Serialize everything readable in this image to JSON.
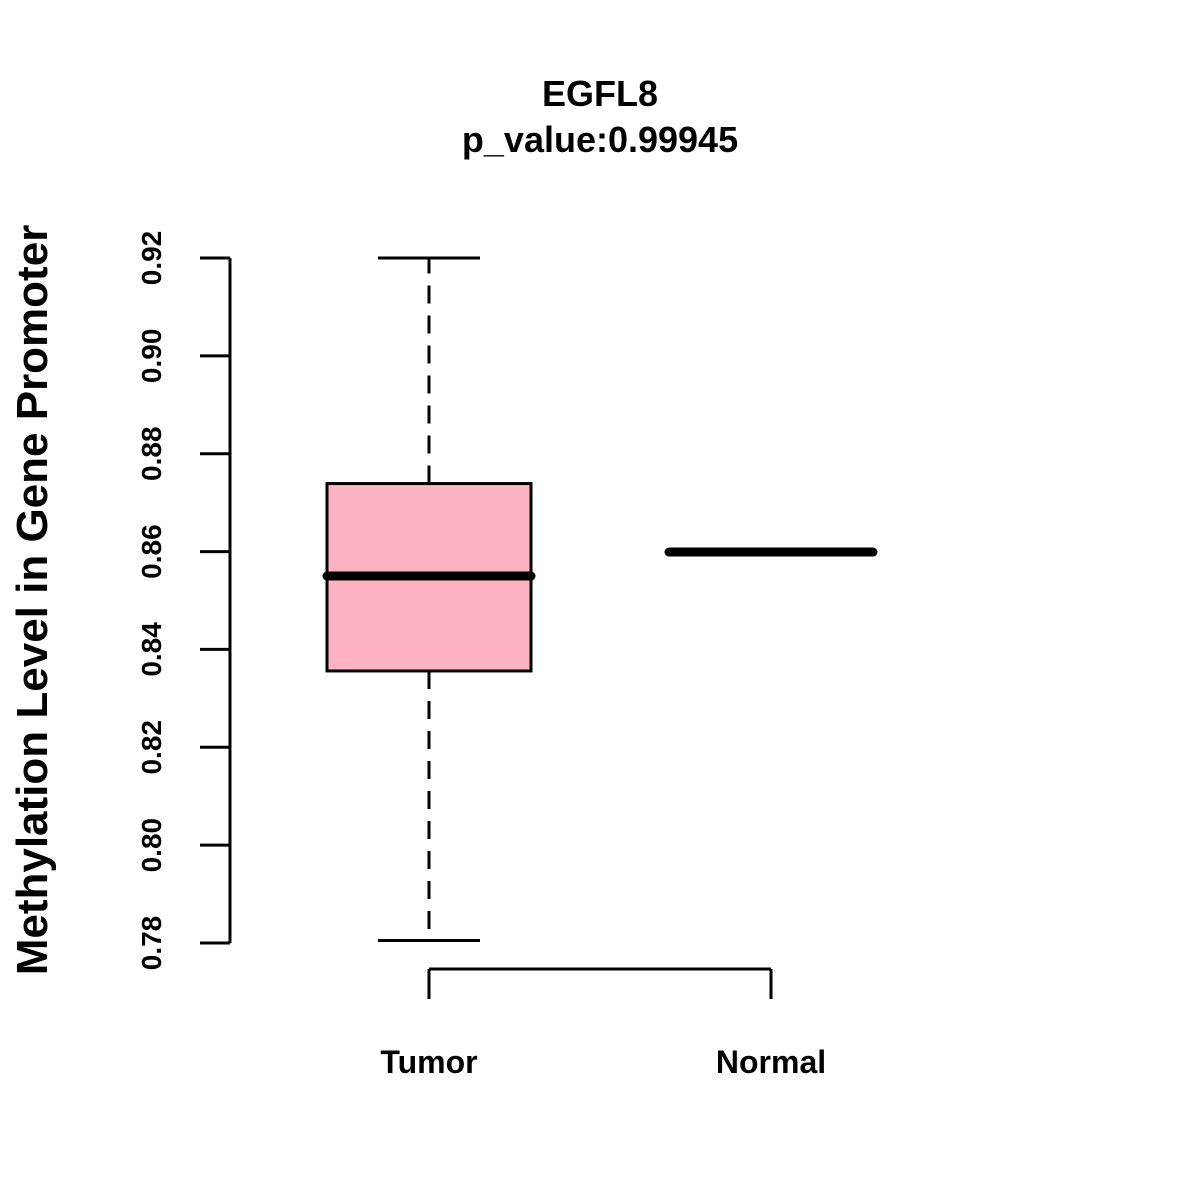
{
  "chart_data": {
    "type": "box",
    "title": "EGFL8",
    "subtitle": "p_value:0.99945",
    "ylabel": "Methylation Level in Gene Promoter",
    "xlabel": "",
    "ylim": [
      0.78,
      0.92
    ],
    "yticks": [
      0.78,
      0.8,
      0.82,
      0.84,
      0.86,
      0.88,
      0.9,
      0.92
    ],
    "ytick_labels": [
      "0.78",
      "0.80",
      "0.82",
      "0.84",
      "0.86",
      "0.88",
      "0.90",
      "0.92"
    ],
    "categories": [
      "Tumor",
      "Normal"
    ],
    "boxes": [
      {
        "name": "Tumor",
        "min": 0.7805,
        "q1": 0.8356,
        "median": 0.855,
        "q3": 0.8739,
        "max": 0.92,
        "fill": "#FFB2C1"
      },
      {
        "name": "Normal",
        "min": 0.8599,
        "q1": 0.8599,
        "median": 0.8599,
        "q3": 0.8599,
        "max": 0.8599,
        "fill": "#FFB2C1"
      }
    ],
    "grid": false,
    "legend": "none"
  }
}
